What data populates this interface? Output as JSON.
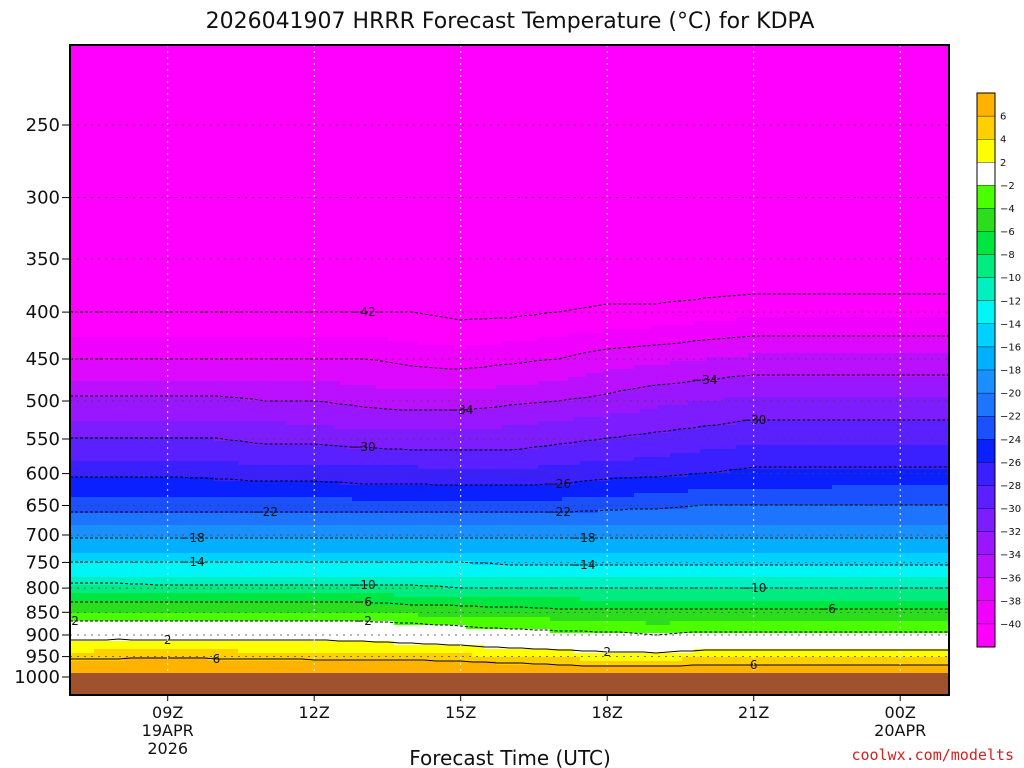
{
  "title": "2026041907 HRRR Forecast Temperature (°C) for KDPA",
  "credit": "coolwx.com/modelts",
  "colors": {
    "credit": "#d62020",
    "ground": "#a0522d",
    "frame": "#000000"
  },
  "chart_data": {
    "type": "heatmap",
    "title": "2026041907 HRRR Forecast Temperature (°C) for KDPA",
    "xlabel": "Forecast Time (UTC)",
    "ylabel": "",
    "x": [
      7,
      8,
      9,
      10,
      11,
      12,
      13,
      14,
      15,
      16,
      17,
      18,
      19,
      20,
      21,
      22,
      23,
      24,
      25
    ],
    "xlim": [
      7,
      25
    ],
    "x_ticks": [
      {
        "hour": 9,
        "label": "09Z",
        "sub1": "19APR",
        "sub2": "2026"
      },
      {
        "hour": 12,
        "label": "12Z",
        "sub1": "",
        "sub2": ""
      },
      {
        "hour": 15,
        "label": "15Z",
        "sub1": "",
        "sub2": ""
      },
      {
        "hour": 18,
        "label": "18Z",
        "sub1": "",
        "sub2": ""
      },
      {
        "hour": 21,
        "label": "21Z",
        "sub1": "",
        "sub2": ""
      },
      {
        "hour": 24,
        "label": "00Z",
        "sub1": "20APR",
        "sub2": ""
      }
    ],
    "y_ticks": [
      250,
      300,
      350,
      400,
      450,
      500,
      550,
      600,
      650,
      700,
      750,
      800,
      850,
      900,
      950,
      1000
    ],
    "ylim": [
      1020,
      200
    ],
    "y_scale": "log",
    "y_inverted": true,
    "grid": true,
    "colorbar_ticks": [
      6,
      4,
      2,
      -2,
      -4,
      -6,
      -8,
      -10,
      -12,
      -14,
      -16,
      -18,
      -20,
      -22,
      -24,
      -26,
      -28,
      -30,
      -32,
      -34,
      -36,
      -38,
      -40
    ],
    "colorbar_bands": [
      {
        "min": 6,
        "max": 8,
        "color": "#ffb300"
      },
      {
        "min": 4,
        "max": 6,
        "color": "#ffd000"
      },
      {
        "min": 2,
        "max": 4,
        "color": "#ffff00"
      },
      {
        "min": -2,
        "max": 2,
        "color": "#ffffff"
      },
      {
        "min": -4,
        "max": -2,
        "color": "#4cff00"
      },
      {
        "min": -6,
        "max": -4,
        "color": "#2bdd1c"
      },
      {
        "min": -8,
        "max": -6,
        "color": "#00e640"
      },
      {
        "min": -10,
        "max": -8,
        "color": "#00ec80"
      },
      {
        "min": -12,
        "max": -10,
        "color": "#00f0c0"
      },
      {
        "min": -14,
        "max": -12,
        "color": "#00f6f6"
      },
      {
        "min": -16,
        "max": -14,
        "color": "#00d2ff"
      },
      {
        "min": -18,
        "max": -16,
        "color": "#00b0ff"
      },
      {
        "min": -20,
        "max": -18,
        "color": "#1a90ff"
      },
      {
        "min": -22,
        "max": -20,
        "color": "#1e74ff"
      },
      {
        "min": -24,
        "max": -22,
        "color": "#1a50ff"
      },
      {
        "min": -26,
        "max": -24,
        "color": "#0a20ff"
      },
      {
        "min": -28,
        "max": -26,
        "color": "#3a20ff"
      },
      {
        "min": -30,
        "max": -28,
        "color": "#5a20ff"
      },
      {
        "min": -32,
        "max": -30,
        "color": "#7c1cff"
      },
      {
        "min": -34,
        "max": -32,
        "color": "#9a16ff"
      },
      {
        "min": -36,
        "max": -34,
        "color": "#bb10ff"
      },
      {
        "min": -38,
        "max": -36,
        "color": "#dd08ff"
      },
      {
        "min": -40,
        "max": -38,
        "color": "#f000ff"
      },
      {
        "min": -60,
        "max": -40,
        "color": "#ff00ff"
      }
    ],
    "pressure_levels": [
      1000,
      975,
      950,
      925,
      900,
      875,
      850,
      825,
      800,
      775,
      750,
      725,
      700,
      675,
      650,
      625,
      600,
      575,
      550,
      525,
      500,
      475,
      450,
      425,
      400,
      350,
      300,
      250,
      200
    ],
    "temperature_profiles": [
      [
        10,
        8.5,
        5,
        3,
        1,
        -1.5,
        -4,
        -6.5,
        -9,
        -12,
        -14,
        -16.5,
        -18.5,
        -21,
        -23,
        -24.5,
        -26.5,
        -28.5,
        -30,
        -32,
        -33.5,
        -36,
        -38,
        -40,
        -42,
        -45,
        -48,
        -50,
        -52
      ],
      [
        10,
        8.5,
        5.2,
        3,
        1.2,
        -1.5,
        -4,
        -6.5,
        -9,
        -12,
        -14,
        -16.5,
        -18.5,
        -21,
        -23,
        -24.5,
        -26.5,
        -28.5,
        -30,
        -32,
        -33.5,
        -36,
        -38,
        -40,
        -42,
        -45,
        -48,
        -50,
        -52
      ],
      [
        10,
        8.5,
        5.5,
        3,
        1,
        -1.5,
        -4,
        -6.5,
        -9.5,
        -12,
        -14,
        -16.5,
        -18.5,
        -21,
        -23,
        -24.5,
        -26.5,
        -28.5,
        -30,
        -32,
        -33.5,
        -36,
        -38,
        -40,
        -42,
        -45,
        -48,
        -50,
        -52
      ],
      [
        10,
        8.5,
        5.2,
        3,
        1,
        -1.5,
        -4,
        -6.5,
        -9.5,
        -12,
        -14,
        -16.5,
        -18.5,
        -21,
        -23,
        -25,
        -26.5,
        -28.5,
        -30,
        -32,
        -33.5,
        -36,
        -38,
        -40,
        -42,
        -45,
        -48,
        -50,
        -52
      ],
      [
        10,
        8.2,
        5,
        3,
        1,
        -1.5,
        -4,
        -6.5,
        -9.5,
        -12,
        -14,
        -16.5,
        -18.5,
        -21,
        -23,
        -25,
        -27,
        -29,
        -30.5,
        -32,
        -34,
        -36,
        -38,
        -40,
        -42,
        -45,
        -48,
        -50,
        -52
      ],
      [
        10,
        8,
        5,
        3,
        1,
        -1.5,
        -4,
        -6.5,
        -9.5,
        -12,
        -14,
        -16.5,
        -18.5,
        -21,
        -23,
        -25,
        -27,
        -29,
        -30.5,
        -32.5,
        -34,
        -36,
        -38,
        -40,
        -42,
        -45,
        -48,
        -50,
        -52
      ],
      [
        10,
        8,
        5,
        3,
        0.5,
        -1.5,
        -4,
        -6.5,
        -9.5,
        -12,
        -14,
        -16.5,
        -18.5,
        -21,
        -23,
        -25.5,
        -27,
        -29,
        -31,
        -33,
        -34.5,
        -36.5,
        -38,
        -40,
        -42,
        -45,
        -48,
        -50,
        -52
      ],
      [
        10,
        8,
        4.8,
        2.5,
        0,
        -2,
        -4.5,
        -7,
        -9.5,
        -12,
        -14,
        -16.5,
        -18.5,
        -21,
        -23,
        -25.5,
        -27,
        -29.5,
        -31,
        -33,
        -35,
        -37,
        -38.5,
        -40.5,
        -42,
        -45,
        -48,
        -50,
        -52
      ],
      [
        10,
        7.5,
        4.5,
        2,
        -0.5,
        -2.5,
        -5,
        -7,
        -10,
        -12,
        -14,
        -16.5,
        -18.5,
        -21,
        -23,
        -25.5,
        -27.5,
        -29.5,
        -31,
        -33,
        -35,
        -37,
        -39,
        -41,
        -42.5,
        -45,
        -48,
        -50,
        -52
      ],
      [
        10,
        7,
        4,
        1.5,
        -1,
        -3,
        -5,
        -7.5,
        -10,
        -12,
        -14.5,
        -16.5,
        -18.5,
        -21,
        -23,
        -25.5,
        -27.5,
        -29.5,
        -31,
        -32.5,
        -34.5,
        -36.5,
        -38.5,
        -40.5,
        -42.5,
        -45,
        -48,
        -50,
        -52
      ],
      [
        10,
        6.5,
        3.5,
        1,
        -1.5,
        -3,
        -5.5,
        -7.5,
        -10,
        -12,
        -14.5,
        -16.5,
        -18.5,
        -21,
        -23,
        -25.5,
        -27,
        -29,
        -30.5,
        -32,
        -34,
        -36,
        -38,
        -40,
        -42,
        -45,
        -48,
        -50,
        -52
      ],
      [
        10,
        6,
        3,
        0.5,
        -1.5,
        -3.5,
        -5.5,
        -8,
        -10,
        -12,
        -14.5,
        -16.5,
        -18.5,
        -21,
        -22.5,
        -25,
        -26.5,
        -28.5,
        -30,
        -31.5,
        -33.5,
        -35,
        -37,
        -39.5,
        -41.5,
        -45,
        -48,
        -50,
        -52
      ],
      [
        10,
        6,
        3,
        0,
        -2,
        -4,
        -5.5,
        -8,
        -10,
        -12,
        -14.5,
        -16.5,
        -18.5,
        -20.5,
        -22.5,
        -24.5,
        -26.5,
        -28,
        -29.5,
        -31,
        -32.5,
        -34.5,
        -36.5,
        -39,
        -41.5,
        -45,
        -48,
        -50,
        -52
      ],
      [
        10,
        6.5,
        3.5,
        1,
        -1.5,
        -3.5,
        -5.5,
        -8,
        -10,
        -12,
        -14.5,
        -16.5,
        -18.5,
        -20.5,
        -22,
        -24,
        -26,
        -27.5,
        -29,
        -30.5,
        -32,
        -34,
        -36,
        -38.5,
        -41,
        -45,
        -48,
        -50,
        -52
      ],
      [
        10,
        6.5,
        3.5,
        1,
        -1.5,
        -3.5,
        -5.5,
        -8,
        -10,
        -12,
        -14.5,
        -16.5,
        -18.5,
        -20.5,
        -22,
        -24,
        -25.5,
        -27,
        -28.5,
        -30,
        -31.5,
        -33.5,
        -35.5,
        -38,
        -40.5,
        -45,
        -48,
        -50,
        -52
      ],
      [
        10,
        6.5,
        3.5,
        1,
        -1.5,
        -3.5,
        -5.5,
        -8,
        -10,
        -12,
        -14.5,
        -16.5,
        -18.5,
        -20.5,
        -22,
        -24,
        -25.5,
        -27,
        -28.5,
        -30,
        -31.5,
        -33.5,
        -35.5,
        -38,
        -40.5,
        -45,
        -48,
        -50,
        -52
      ],
      [
        10,
        6.5,
        3.5,
        1,
        -1.5,
        -3.5,
        -5.5,
        -8,
        -10,
        -12,
        -14.5,
        -16.5,
        -18.5,
        -20.5,
        -22,
        -23.5,
        -25.5,
        -27,
        -28.5,
        -30,
        -31.5,
        -33.5,
        -35.5,
        -38,
        -40.5,
        -45,
        -48,
        -50,
        -52
      ],
      [
        10,
        6.5,
        3.5,
        1,
        -1.5,
        -3.5,
        -5.5,
        -8,
        -10,
        -12,
        -14.5,
        -16.5,
        -18.5,
        -20.5,
        -22,
        -23.5,
        -25.5,
        -27,
        -28.5,
        -30,
        -31.5,
        -33.5,
        -35.5,
        -38,
        -40.5,
        -45,
        -48,
        -50,
        -52
      ],
      [
        10,
        6.5,
        3.5,
        1,
        -1.5,
        -3.5,
        -5.5,
        -8,
        -10,
        -12,
        -14.5,
        -16.5,
        -18.5,
        -20.5,
        -22,
        -23.5,
        -25.5,
        -27,
        -28.5,
        -30,
        -31.5,
        -33.5,
        -35.5,
        -38,
        -40.5,
        -45,
        -48,
        -50,
        -52
      ]
    ]
  }
}
